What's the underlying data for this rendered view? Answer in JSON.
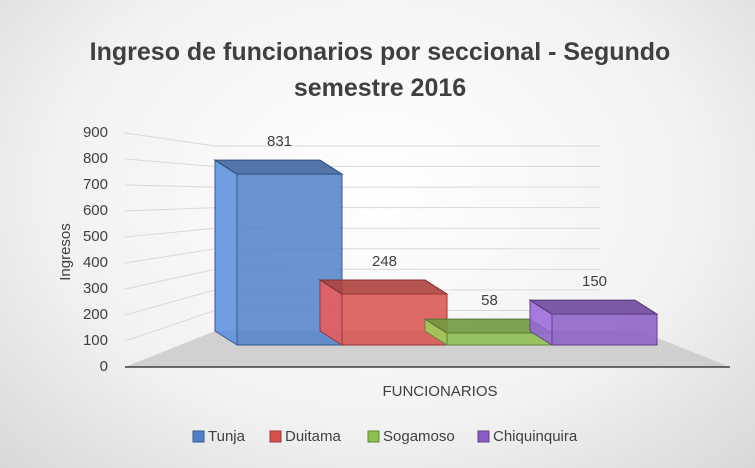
{
  "chart_data": {
    "type": "bar3d",
    "title": "Ingreso de funcionarios por seccional - Segundo semestre 2016",
    "ylabel": "Ingresos",
    "categories": [
      "FUNCIONARIOS"
    ],
    "series": [
      {
        "name": "Tunja",
        "color": "#4f81c9",
        "values": [
          831
        ]
      },
      {
        "name": "Duitama",
        "color": "#d9514e",
        "values": [
          248
        ]
      },
      {
        "name": "Sogamoso",
        "color": "#8cc04f",
        "values": [
          58
        ]
      },
      {
        "name": "Chiquinquira",
        "color": "#8a5cc4",
        "values": [
          150
        ]
      }
    ],
    "ylim": [
      0,
      900
    ],
    "yticks": [
      0,
      100,
      200,
      300,
      400,
      500,
      600,
      700,
      800,
      900
    ],
    "grid": true,
    "data_labels": true,
    "legend": "bottom"
  }
}
